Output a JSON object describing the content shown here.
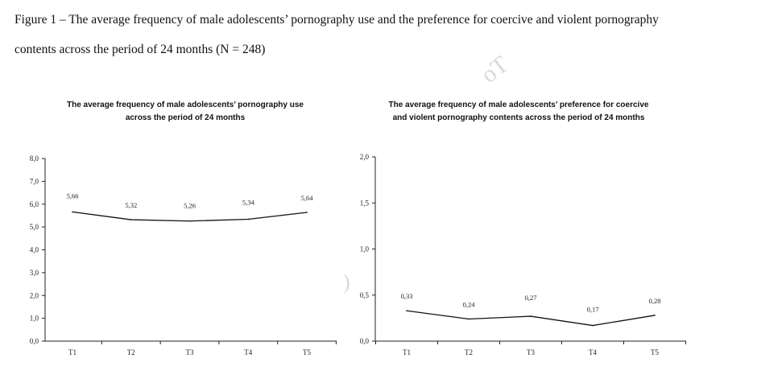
{
  "figure": {
    "caption_line1": "Figure 1 – The average frequency of male adolescents’ pornography use and the preference for coercive and violent pornography",
    "caption_line2": "contents across the period of 24 months (N = 248)"
  },
  "watermark": {
    "text1": "oT",
    "text2": ")"
  },
  "chart_data": [
    {
      "type": "line",
      "title_line1": "The average frequency of male adolescents’ pornography use",
      "title_line2": "across the period of 24 months",
      "categories": [
        "T1",
        "T2",
        "T3",
        "T4",
        "T5"
      ],
      "values": [
        5.66,
        5.32,
        5.26,
        5.34,
        5.64
      ],
      "value_labels": [
        "5,66",
        "5,32",
        "5,26",
        "5,34",
        "5,64"
      ],
      "ylim": [
        0,
        8
      ],
      "yticks": [
        0,
        1,
        2,
        3,
        4,
        5,
        6,
        7,
        8
      ],
      "ytick_labels": [
        "0,0",
        "1,0",
        "2,0",
        "3,0",
        "4,0",
        "5,0",
        "6,0",
        "7,0",
        "8,0"
      ],
      "xlabel": "",
      "ylabel": "",
      "grid": false,
      "legend": "none"
    },
    {
      "type": "line",
      "title_line1": "The average frequency of male adolescents’ preference for coercive",
      "title_line2": "and violent pornography contents across the period of 24 months",
      "categories": [
        "T1",
        "T2",
        "T3",
        "T4",
        "T5"
      ],
      "values": [
        0.33,
        0.24,
        0.27,
        0.17,
        0.28
      ],
      "value_labels": [
        "0,33",
        "0,24",
        "0,27",
        "0,17",
        "0,28"
      ],
      "ylim": [
        0,
        2
      ],
      "yticks": [
        0,
        0.5,
        1,
        1.5,
        2
      ],
      "ytick_labels": [
        "0,0",
        "0,5",
        "1,0",
        "1,5",
        "2,0"
      ],
      "xlabel": "",
      "ylabel": "",
      "grid": false,
      "legend": "none"
    }
  ]
}
